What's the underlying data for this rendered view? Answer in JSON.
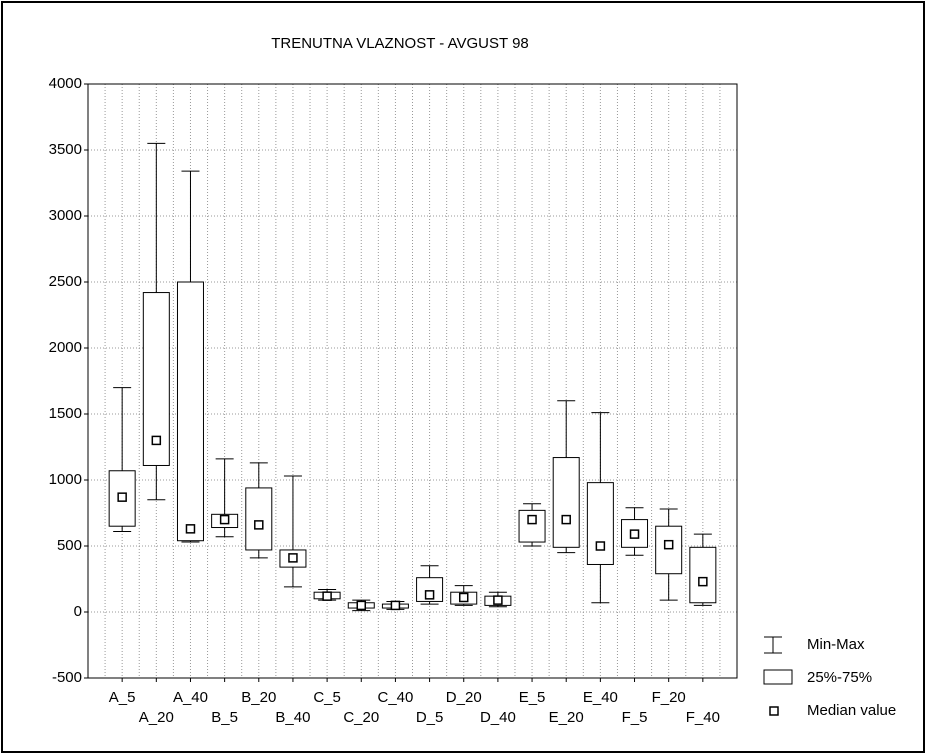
{
  "chart_data": {
    "type": "box",
    "title": "TRENUTNA VLAZNOST - AVGUST 98",
    "categories": [
      "A_5",
      "A_20",
      "A_40",
      "B_5",
      "B_20",
      "B_40",
      "C_5",
      "C_20",
      "C_40",
      "D_5",
      "D_20",
      "D_40",
      "E_5",
      "E_20",
      "E_40",
      "F_5",
      "F_20",
      "F_40"
    ],
    "min": [
      610,
      850,
      530,
      570,
      410,
      190,
      90,
      10,
      20,
      60,
      50,
      40,
      500,
      450,
      70,
      430,
      90,
      50
    ],
    "q1": [
      650,
      1110,
      540,
      640,
      470,
      340,
      100,
      30,
      30,
      80,
      60,
      50,
      530,
      490,
      360,
      490,
      290,
      70
    ],
    "median": [
      870,
      1300,
      630,
      700,
      660,
      410,
      120,
      50,
      50,
      130,
      110,
      90,
      700,
      700,
      500,
      590,
      510,
      230
    ],
    "q3": [
      1070,
      2420,
      2500,
      740,
      940,
      470,
      150,
      70,
      60,
      260,
      150,
      120,
      770,
      1170,
      980,
      700,
      650,
      490
    ],
    "max": [
      1700,
      3550,
      3340,
      1160,
      1130,
      1030,
      170,
      90,
      80,
      350,
      200,
      150,
      820,
      1600,
      1510,
      790,
      780,
      590
    ],
    "legend": [
      "Min-Max",
      "25%-75%",
      "Median value"
    ],
    "ylim": [
      -500,
      4000
    ],
    "yticks": [
      -500,
      0,
      500,
      1000,
      1500,
      2000,
      2500,
      3000,
      3500,
      4000
    ],
    "grid": true
  }
}
